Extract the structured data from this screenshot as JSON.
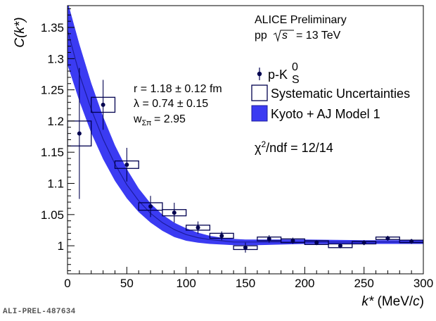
{
  "figure_id": "ALI-PREL-487634",
  "chart_data": {
    "type": "scatter",
    "title": "",
    "xlabel": "k* (MeV/c)",
    "ylabel": "C(k*)",
    "xlim": [
      0,
      300
    ],
    "ylim": [
      0.955,
      1.385
    ],
    "x_ticks": [
      0,
      50,
      100,
      150,
      200,
      250,
      300
    ],
    "y_ticks": [
      1,
      1.05,
      1.1,
      1.15,
      1.2,
      1.25,
      1.3,
      1.35
    ],
    "annotations": {
      "experiment": "ALICE Preliminary",
      "system_prefix": "pp",
      "sqrt_s": "s",
      "energy": "= 13 TeV",
      "r_value": "r = 1.18 ± 0.12 fm",
      "lambda_value": "λ = 0.74 ± 0.15",
      "weight_value": "= 2.95",
      "chi2": "χ²/ndf = 12/14"
    },
    "legend": {
      "position": "top-right",
      "data_label": "p-K",
      "data_label_sup": "0",
      "data_label_sub": "S",
      "syst_label": "Systematic Uncertainties",
      "model_label": "Kyoto + AJ Model 1"
    },
    "colors": {
      "data": "#00004f",
      "band": "#3b3bf2",
      "line": "#1c1c9e",
      "box": "#00004f"
    },
    "series": [
      {
        "name": "p-K0S",
        "points": [
          {
            "x": 10,
            "y": 1.18,
            "stat": 0.105,
            "syst": 0.02
          },
          {
            "x": 30,
            "y": 1.226,
            "stat": 0.04,
            "syst": 0.012
          },
          {
            "x": 50,
            "y": 1.13,
            "stat": 0.027,
            "syst": 0.006
          },
          {
            "x": 70,
            "y": 1.063,
            "stat": 0.017,
            "syst": 0.006
          },
          {
            "x": 90,
            "y": 1.053,
            "stat": 0.016,
            "syst": 0.005
          },
          {
            "x": 110,
            "y": 1.029,
            "stat": 0.01,
            "syst": 0.004
          },
          {
            "x": 130,
            "y": 1.016,
            "stat": 0.007,
            "syst": 0.004
          },
          {
            "x": 150,
            "y": 0.997,
            "stat": 0.008,
            "syst": 0.003
          },
          {
            "x": 170,
            "y": 1.011,
            "stat": 0.006,
            "syst": 0.003
          },
          {
            "x": 190,
            "y": 1.008,
            "stat": 0.005,
            "syst": 0.003
          },
          {
            "x": 210,
            "y": 1.005,
            "stat": 0.004,
            "syst": 0.003
          },
          {
            "x": 230,
            "y": 1.0,
            "stat": 0.004,
            "syst": 0.003
          },
          {
            "x": 250,
            "y": 1.005,
            "stat": 0.004,
            "syst": 0.002
          },
          {
            "x": 270,
            "y": 1.012,
            "stat": 0.004,
            "syst": 0.002
          },
          {
            "x": 290,
            "y": 1.007,
            "stat": 0.004,
            "syst": 0.002
          }
        ]
      }
    ],
    "model_band": {
      "name": "Kyoto + AJ Model 1",
      "x": [
        0,
        10,
        20,
        30,
        40,
        50,
        60,
        70,
        80,
        90,
        100,
        110,
        120,
        130,
        140,
        150,
        160,
        180,
        200,
        250,
        300
      ],
      "lower": [
        1.29,
        1.232,
        1.181,
        1.139,
        1.104,
        1.076,
        1.054,
        1.037,
        1.024,
        1.014,
        1.008,
        1.005,
        1.003,
        1.002,
        1.001,
        1.001,
        1.001,
        1.002,
        1.003,
        1.003,
        1.003
      ],
      "upper": [
        1.392,
        1.323,
        1.261,
        1.207,
        1.161,
        1.123,
        1.092,
        1.068,
        1.05,
        1.037,
        1.028,
        1.021,
        1.016,
        1.013,
        1.011,
        1.01,
        1.01,
        1.01,
        1.01,
        1.009,
        1.009
      ],
      "central": [
        1.346,
        1.275,
        1.219,
        1.171,
        1.131,
        1.098,
        1.072,
        1.052,
        1.037,
        1.026,
        1.018,
        1.013,
        1.01,
        1.008,
        1.006,
        1.006,
        1.006,
        1.006,
        1.006,
        1.006,
        1.006
      ]
    }
  }
}
